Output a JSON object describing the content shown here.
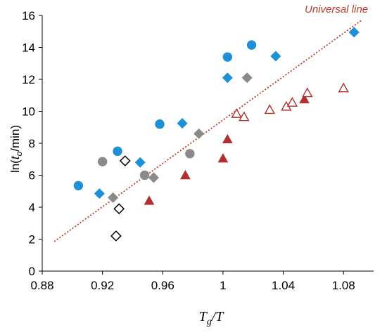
{
  "chart_data": {
    "type": "scatter",
    "title": "",
    "xlabel": {
      "base": "T",
      "sub": "g",
      "rest": "/T"
    },
    "ylabel": {
      "pre": "ln(",
      "var": "t",
      "sub": "o",
      "post": "/min)"
    },
    "xlim": [
      0.88,
      1.1
    ],
    "ylim": [
      0,
      16
    ],
    "xticks": [
      0.88,
      0.92,
      0.96,
      1,
      1.04,
      1.08
    ],
    "xtick_labels": [
      "0.88",
      "0.92",
      "0.96",
      "1",
      "1.04",
      "1.08"
    ],
    "yticks": [
      0,
      2,
      4,
      6,
      8,
      10,
      12,
      14,
      16
    ],
    "ytick_labels": [
      "0",
      "2",
      "4",
      "6",
      "8",
      "10",
      "12",
      "14",
      "16"
    ],
    "grid": false,
    "annotation": "Universal line",
    "universal_line": {
      "x": [
        0.888,
        1.092
      ],
      "y": [
        1.85,
        15.7
      ],
      "color": "#c0392b"
    },
    "series": [
      {
        "marker": "circle",
        "fill": "#1e90d8",
        "stroke": "#1e90d8",
        "points": [
          [
            0.904,
            5.35
          ],
          [
            0.93,
            7.5
          ],
          [
            0.958,
            9.2
          ],
          [
            1.003,
            13.4
          ],
          [
            1.019,
            14.15
          ]
        ]
      },
      {
        "marker": "diamond",
        "fill": "#1e90d8",
        "stroke": "#1e90d8",
        "points": [
          [
            0.918,
            4.85
          ],
          [
            0.945,
            6.8
          ],
          [
            0.973,
            9.25
          ],
          [
            1.003,
            12.1
          ],
          [
            1.035,
            13.45
          ],
          [
            1.087,
            14.95
          ]
        ]
      },
      {
        "marker": "circle",
        "fill": "#8a8a8a",
        "stroke": "#8a8a8a",
        "points": [
          [
            0.92,
            6.85
          ],
          [
            0.948,
            6.0
          ],
          [
            0.978,
            7.35
          ]
        ]
      },
      {
        "marker": "diamond",
        "fill": "#8a8a8a",
        "stroke": "#8a8a8a",
        "points": [
          [
            0.927,
            4.6
          ],
          [
            0.954,
            5.85
          ],
          [
            0.984,
            8.6
          ],
          [
            1.016,
            12.1
          ]
        ]
      },
      {
        "marker": "diamond-open",
        "fill": "#ffffff",
        "stroke": "#000000",
        "points": [
          [
            0.929,
            2.2
          ],
          [
            0.931,
            3.9
          ],
          [
            0.935,
            6.9
          ]
        ]
      },
      {
        "marker": "triangle",
        "fill": "#b03030",
        "stroke": "#b03030",
        "points": [
          [
            0.951,
            4.4
          ],
          [
            0.975,
            6.0
          ],
          [
            1.0,
            7.05
          ],
          [
            1.003,
            8.25
          ],
          [
            1.054,
            10.75
          ]
        ]
      },
      {
        "marker": "triangle-open",
        "fill": "#ffffff",
        "stroke": "#b03030",
        "points": [
          [
            1.009,
            9.85
          ],
          [
            1.014,
            9.65
          ],
          [
            1.031,
            10.1
          ],
          [
            1.042,
            10.3
          ],
          [
            1.046,
            10.55
          ],
          [
            1.056,
            11.15
          ],
          [
            1.08,
            11.45
          ]
        ]
      }
    ]
  }
}
